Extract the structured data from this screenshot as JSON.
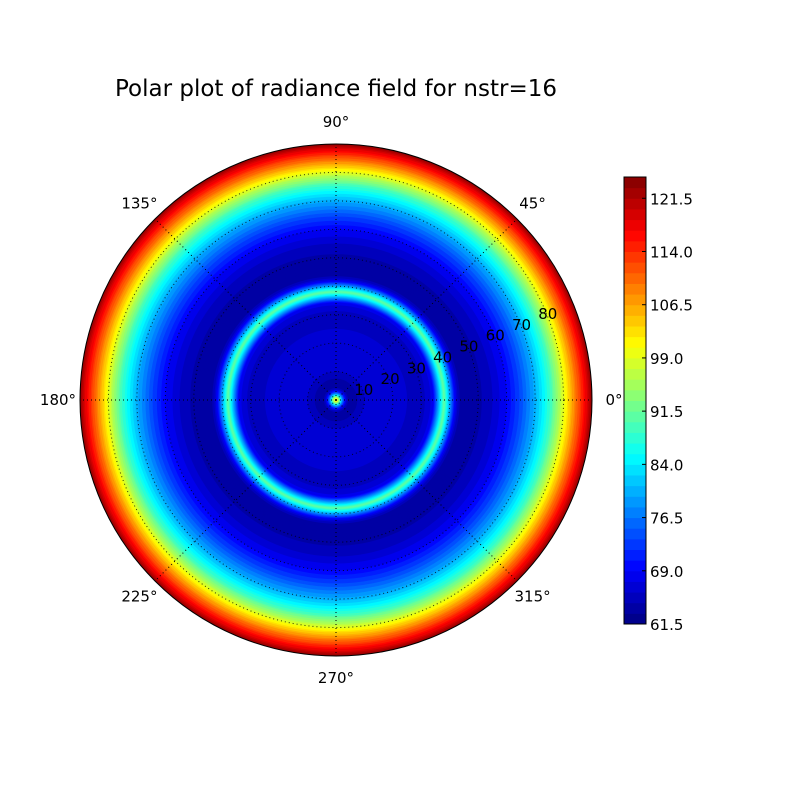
{
  "chart_data": {
    "type": "polar-contour",
    "title": "Polar plot of radiance field for nstr=16",
    "angle_ticks": [
      "0°",
      "45°",
      "90°",
      "135°",
      "180°",
      "225°",
      "270°",
      "315°"
    ],
    "radial_ticks": [
      "10",
      "20",
      "30",
      "40",
      "50",
      "60",
      "70",
      "80"
    ],
    "radial_range": [
      0,
      90
    ],
    "grid": true,
    "colormap": "jet",
    "colorbar": {
      "range": [
        61.5,
        124.5
      ],
      "level_step": 1.5,
      "tick_labels": [
        "61.5",
        "69.0",
        "76.5",
        "84.0",
        "91.5",
        "99.0",
        "106.5",
        "114.0",
        "121.5"
      ],
      "placement": "right"
    },
    "radial_profile": {
      "r": [
        0,
        1,
        2,
        3,
        4,
        5,
        10,
        20,
        30,
        34,
        36,
        38,
        40,
        42,
        44,
        48,
        50,
        55,
        60,
        65,
        70,
        75,
        80,
        85,
        88,
        90
      ],
      "radiance": [
        102,
        95,
        80,
        70,
        65,
        63,
        66,
        67,
        65,
        68,
        80,
        91,
        80,
        68,
        63,
        63,
        64,
        66,
        69,
        74,
        80,
        88,
        99,
        111,
        118,
        124
      ]
    }
  }
}
